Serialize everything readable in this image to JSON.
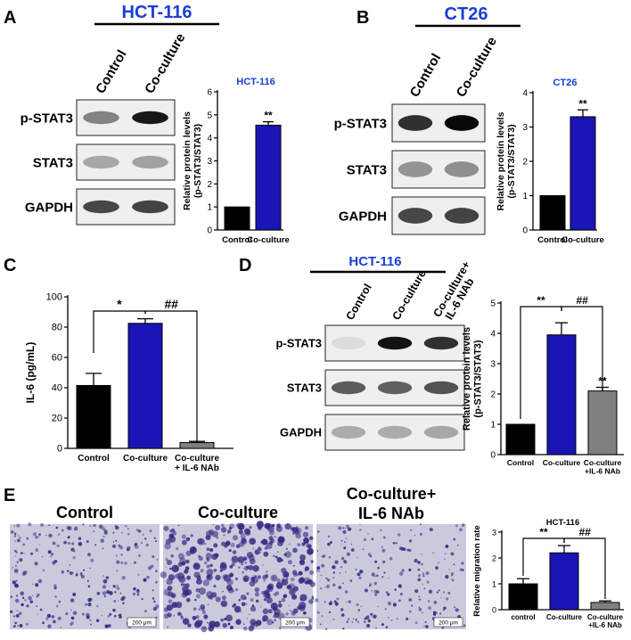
{
  "chart_data": [
    {
      "panel": "A",
      "type": "bar",
      "title": "HCT-116",
      "header": "HCT-116",
      "blot_columns": [
        "Control",
        "Co-culture"
      ],
      "blot_rows": [
        "p-STAT3",
        "STAT3",
        "GAPDH"
      ],
      "ylabel": "Relative protein levels\n(p-STAT3/STAT3)",
      "categories": [
        "Control",
        "Co-culture"
      ],
      "values": [
        1.0,
        4.55
      ],
      "errors": [
        0,
        0.15
      ],
      "significance": [
        "",
        "**"
      ],
      "ylim": [
        0,
        6
      ],
      "yticks": [
        0,
        1,
        2,
        3,
        4,
        5,
        6
      ],
      "colors": [
        "#000000",
        "#1a14b4"
      ]
    },
    {
      "panel": "B",
      "type": "bar",
      "title": "CT26",
      "header": "CT26",
      "blot_columns": [
        "Control",
        "Co-culture"
      ],
      "blot_rows": [
        "p-STAT3",
        "STAT3",
        "GAPDH"
      ],
      "ylabel": "Relative protein levels\n(p-STAT3/STAT3)",
      "categories": [
        "Control",
        "Co-culture"
      ],
      "values": [
        1.0,
        3.3
      ],
      "errors": [
        0,
        0.2
      ],
      "significance": [
        "",
        "**"
      ],
      "ylim": [
        0,
        4
      ],
      "yticks": [
        0,
        1,
        2,
        3,
        4
      ],
      "colors": [
        "#000000",
        "#1a14b4"
      ]
    },
    {
      "panel": "C",
      "type": "bar",
      "title": "",
      "ylabel": "IL-6 (pg/mL)",
      "categories": [
        "Control",
        "Co-culture",
        "Co-culture\n+ IL-6 NAb"
      ],
      "values": [
        41.5,
        82.5,
        3.8
      ],
      "errors": [
        8,
        3,
        0.8
      ],
      "brackets": [
        {
          "from": 0,
          "to": 1,
          "label": "*"
        },
        {
          "from": 1,
          "to": 2,
          "label": "##"
        }
      ],
      "ylim": [
        0,
        100
      ],
      "yticks": [
        0,
        20,
        40,
        60,
        80,
        100
      ],
      "colors": [
        "#000000",
        "#1a14b4",
        "#808080"
      ]
    },
    {
      "panel": "D",
      "type": "bar",
      "title": "",
      "header": "HCT-116",
      "blot_columns": [
        "Control",
        "Co-culture",
        "Co-culture+\nIL-6 NAb"
      ],
      "blot_rows": [
        "p-STAT3",
        "STAT3",
        "GAPDH"
      ],
      "ylabel": "Relative protein levels\n(p-STAT3/STAT3)",
      "categories": [
        "Control",
        "Co-culture",
        "Co-culture\n+IL-6 NAb"
      ],
      "values": [
        1.0,
        3.95,
        2.1
      ],
      "errors": [
        0,
        0.4,
        0.12
      ],
      "significance": [
        "",
        "",
        "**"
      ],
      "brackets": [
        {
          "from": 0,
          "to": 1,
          "label": "**"
        },
        {
          "from": 1,
          "to": 2,
          "label": "##"
        }
      ],
      "ylim": [
        0,
        5
      ],
      "yticks": [
        0,
        1,
        2,
        3,
        4,
        5
      ],
      "colors": [
        "#000000",
        "#1a14b4",
        "#808080"
      ]
    },
    {
      "panel": "E",
      "type": "bar",
      "title": "HCT-116",
      "image_titles": [
        "Control",
        "Co-culture",
        "Co-culture+\nIL-6 NAb"
      ],
      "scale_bar": "200 μm",
      "ylabel": "Relative migration rate",
      "categories": [
        "control",
        "Co-culture",
        "Co-culture\n+IL-6 NAb"
      ],
      "values": [
        1.0,
        2.2,
        0.28
      ],
      "errors": [
        0.2,
        0.28,
        0.06
      ],
      "brackets": [
        {
          "from": 0,
          "to": 1,
          "label": "**"
        },
        {
          "from": 1,
          "to": 2,
          "label": "##"
        }
      ],
      "ylim": [
        0,
        3
      ],
      "yticks": [
        0,
        1,
        2,
        3
      ],
      "colors": [
        "#000000",
        "#1a14b4",
        "#808080"
      ]
    }
  ]
}
